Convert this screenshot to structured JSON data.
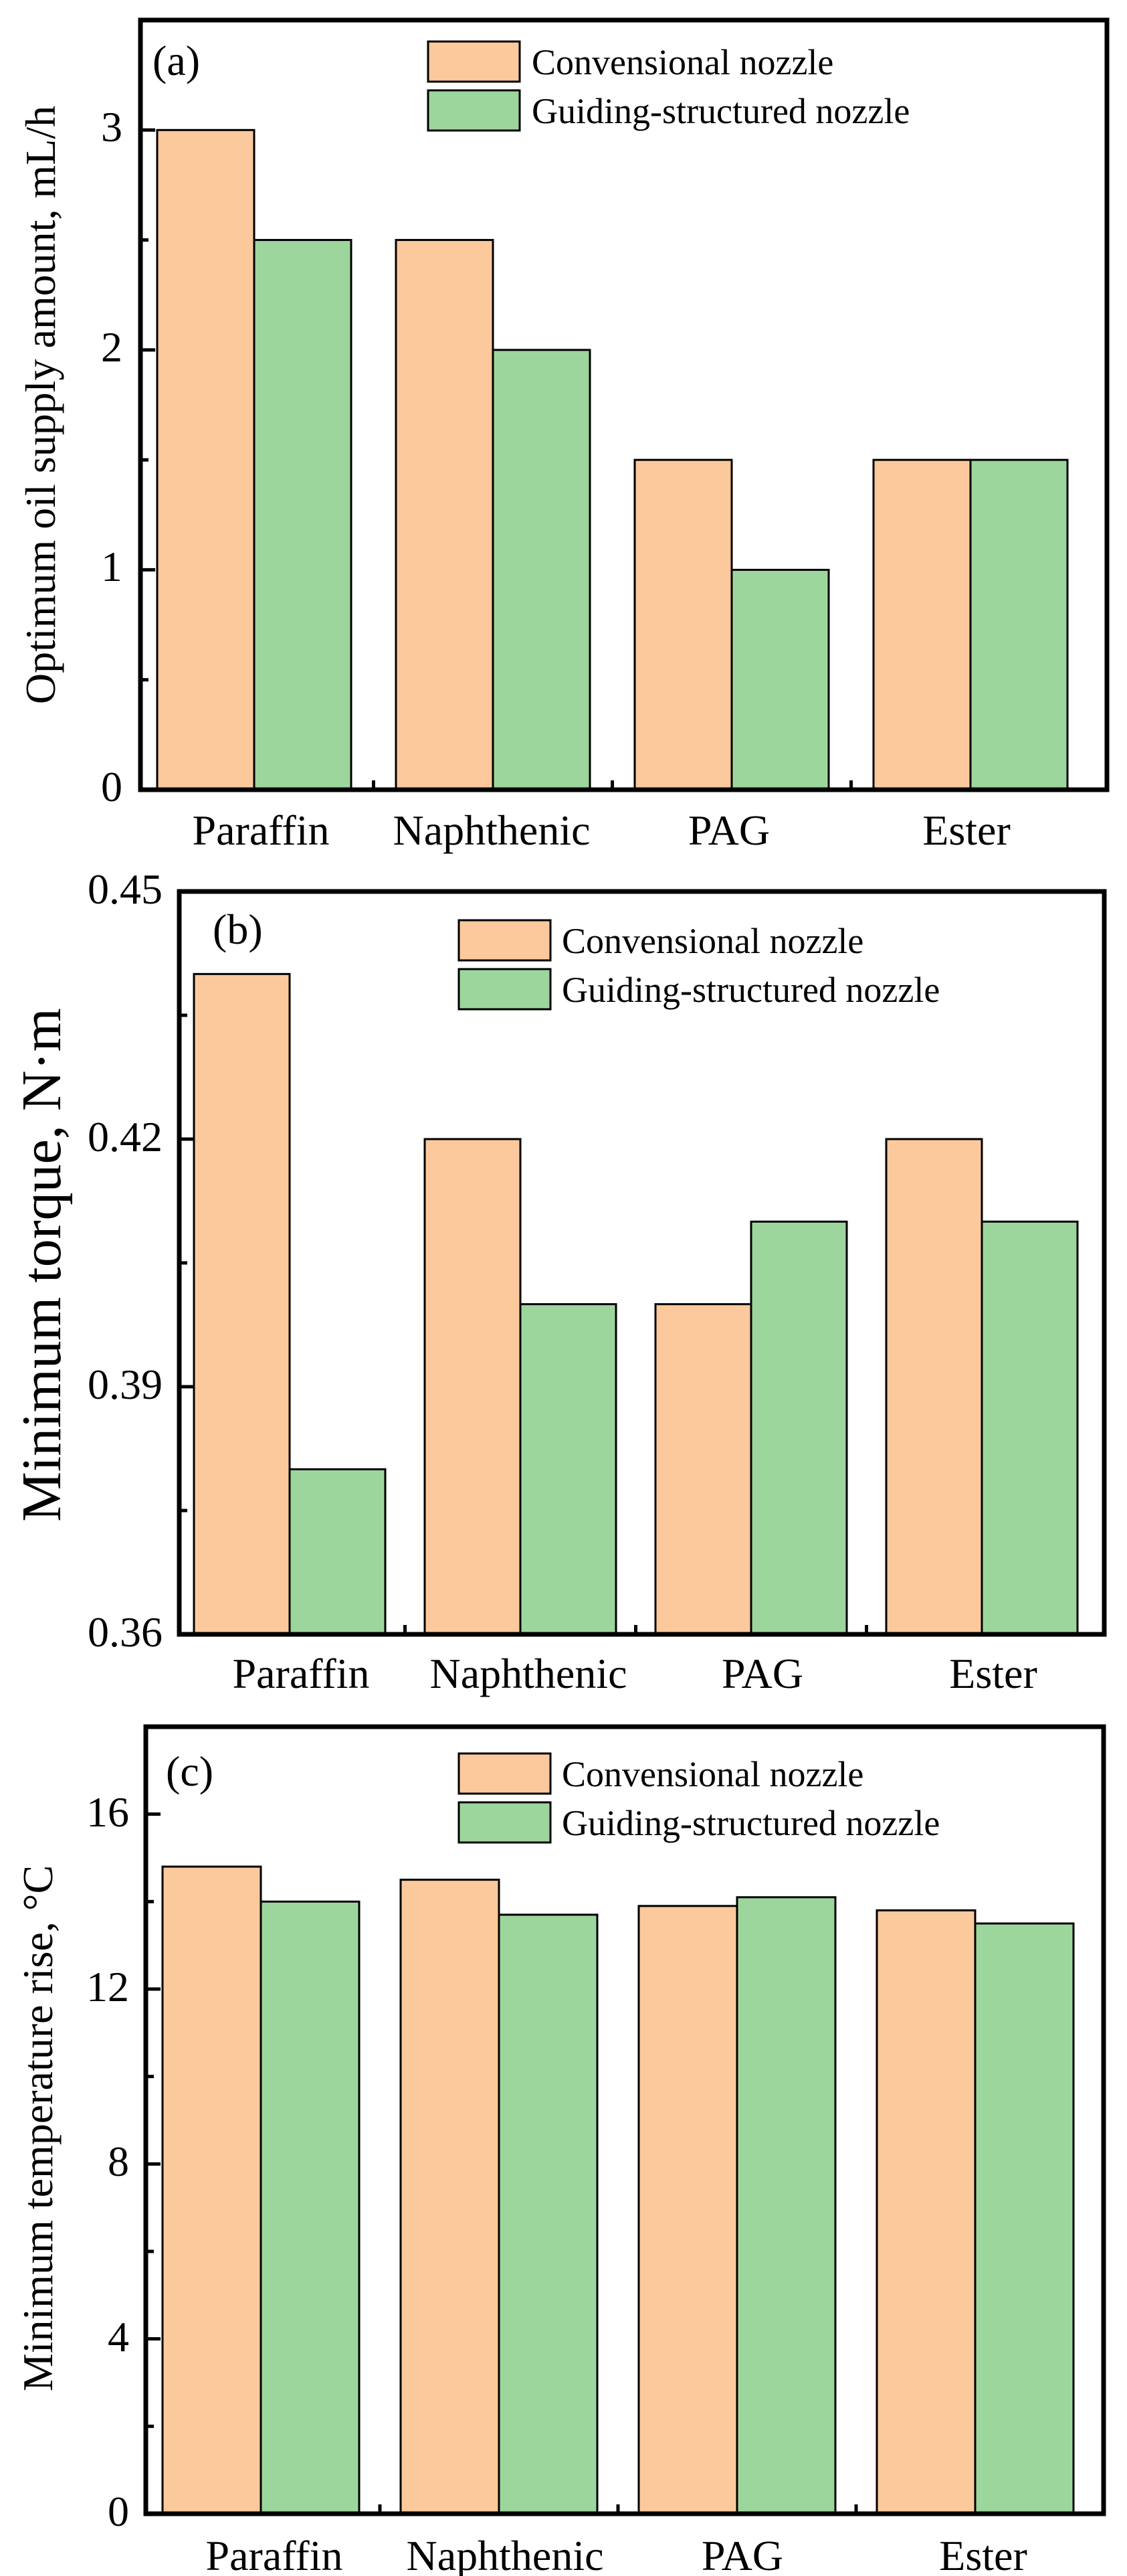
{
  "colors": {
    "conventional": "#FBC99B",
    "guiding": "#9DD69D"
  },
  "chart_data": [
    {
      "type": "bar",
      "panel": "(a)",
      "ylabel": "Optimum oil supply amount, mL/h",
      "categories": [
        "Paraffin",
        "Naphthenic",
        "PAG",
        "Ester"
      ],
      "series": [
        {
          "name": "Convensional nozzle",
          "values": [
            3.0,
            2.5,
            1.5,
            1.5
          ]
        },
        {
          "name": "Guiding-structured nozzle",
          "values": [
            2.5,
            2.0,
            1.0,
            1.5
          ]
        }
      ],
      "ylim": [
        0,
        3.5
      ],
      "yticks": [
        0,
        1,
        2,
        3
      ],
      "ytick_labels": [
        "0",
        "1",
        "2",
        "3"
      ],
      "legend": "top-center"
    },
    {
      "type": "bar",
      "panel": "(b)",
      "ylabel": "Minimum torque, N·m",
      "categories": [
        "Paraffin",
        "Naphthenic",
        "PAG",
        "Ester"
      ],
      "series": [
        {
          "name": "Convensional nozzle",
          "values": [
            0.44,
            0.42,
            0.4,
            0.42
          ]
        },
        {
          "name": "Guiding-structured nozzle",
          "values": [
            0.38,
            0.4,
            0.41,
            0.41
          ]
        }
      ],
      "ylim": [
        0.36,
        0.45
      ],
      "yticks": [
        0.36,
        0.39,
        0.42,
        0.45
      ],
      "ytick_labels": [
        "0.36",
        "0.39",
        "0.42",
        "0.45"
      ],
      "legend": "top-center"
    },
    {
      "type": "bar",
      "panel": "(c)",
      "ylabel": "Minimum temperature rise, °C",
      "categories": [
        "Paraffin",
        "Naphthenic",
        "PAG",
        "Ester"
      ],
      "series": [
        {
          "name": "Convensional nozzle",
          "values": [
            14.8,
            14.5,
            13.9,
            13.8
          ]
        },
        {
          "name": "Guiding-structured nozzle",
          "values": [
            14.0,
            13.7,
            14.1,
            13.5
          ]
        }
      ],
      "ylim": [
        0,
        18
      ],
      "yticks": [
        0,
        4,
        8,
        12,
        16
      ],
      "ytick_labels": [
        "0",
        "4",
        "8",
        "12",
        "16"
      ],
      "legend": "top-center"
    }
  ]
}
